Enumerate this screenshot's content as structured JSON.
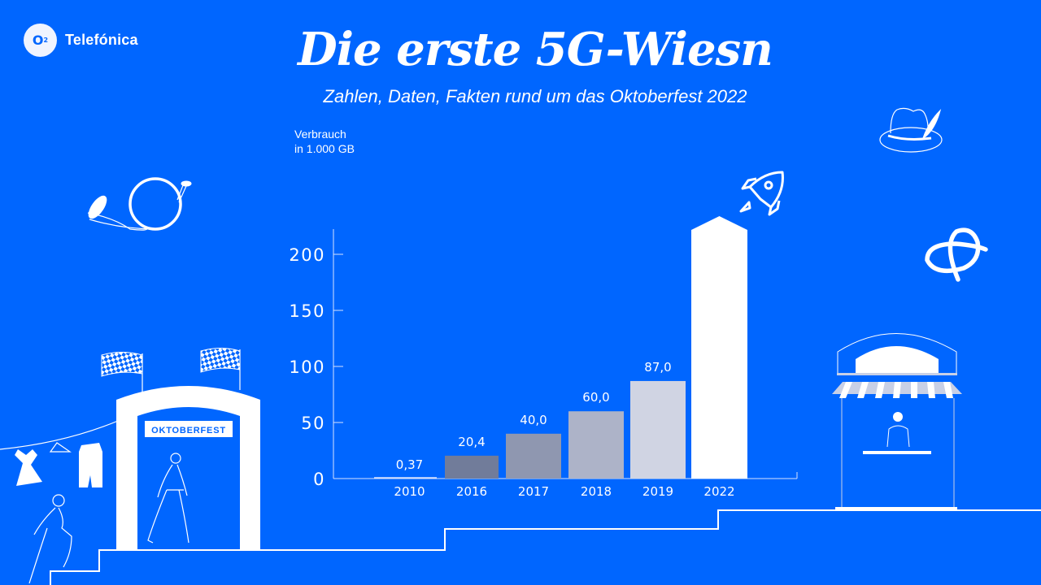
{
  "brand": {
    "logo_mark": "O",
    "logo_sub": "2",
    "name": "Telefónica"
  },
  "colors": {
    "background": "#0066FF",
    "bar_2016": "#717C9A",
    "bar_2017": "#8F97B0",
    "bar_2018": "#ADB3C8",
    "bar_2019": "#D0D4E3",
    "bar_2022": "#FFFFFF"
  },
  "illustrations": {
    "gate_sign": "OKTOBERFEST"
  },
  "chart_data": {
    "type": "bar",
    "title": "Die erste 5G-Wiesn",
    "subtitle": "Zahlen, Daten, Fakten rund um das Oktoberfest 2022",
    "ylabel_lines": [
      "Verbrauch",
      "in 1.000 GB"
    ],
    "xlabel": "",
    "categories": [
      "2010",
      "2016",
      "2017",
      "2018",
      "2019",
      "2022"
    ],
    "values": [
      0.37,
      20.4,
      40.0,
      60.0,
      87.0,
      null
    ],
    "data_labels": [
      "0,37",
      "20,4",
      "40,0",
      "60,0",
      "87,0",
      ""
    ],
    "note": "2022 bar drawn as an arrow extending beyond the axis top (value exceeds scale, not labeled)",
    "yticks": [
      0,
      50,
      100,
      150,
      200
    ],
    "ytick_labels": [
      "0",
      "50",
      "100",
      "150",
      "200"
    ],
    "ylim": [
      0,
      200
    ],
    "grid": false,
    "legend": "none"
  }
}
